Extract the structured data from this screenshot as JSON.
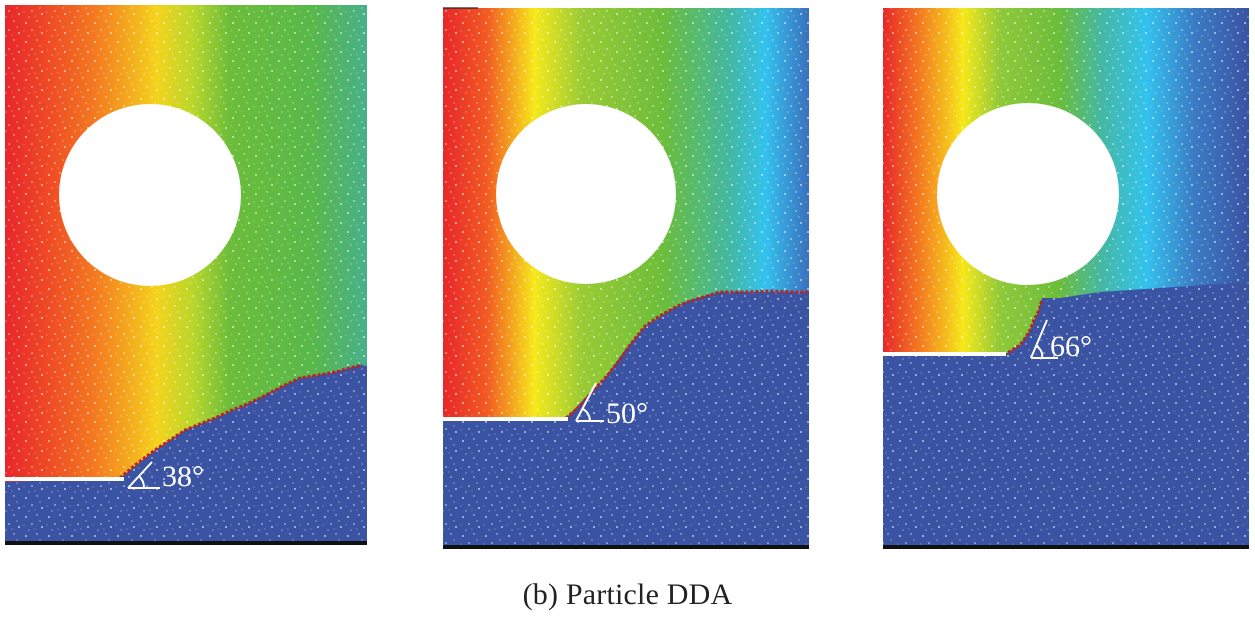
{
  "figure": {
    "caption": "(b) Particle DDA",
    "panels": [
      {
        "id": "panel-1",
        "angle_label": "38°",
        "failure_angle_deg": 38
      },
      {
        "id": "panel-2",
        "angle_label": "50°",
        "failure_angle_deg": 50
      },
      {
        "id": "panel-3",
        "angle_label": "66°",
        "failure_angle_deg": 66
      }
    ],
    "colors": {
      "red": "#e8262a",
      "orange": "#f47a20",
      "yellow": "#f6e81a",
      "green": "#6cbd3a",
      "cyan": "#33c2ee",
      "blue": "#3a53a3",
      "background": "#ffffff",
      "ground": "#111111"
    }
  }
}
